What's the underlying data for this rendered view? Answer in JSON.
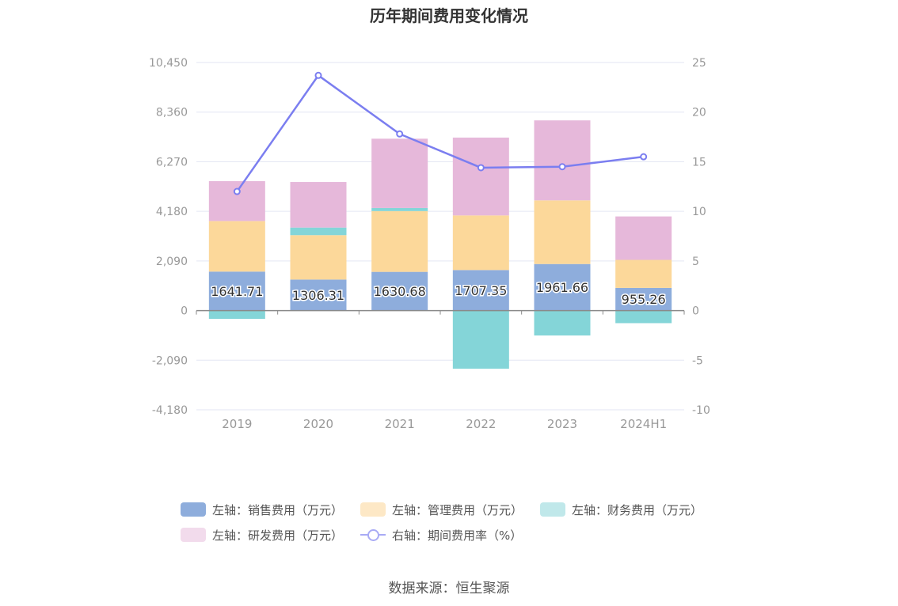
{
  "title": "历年期间费用变化情况",
  "source": "数据来源：恒生聚源",
  "colors": {
    "sales": "#8eaddc",
    "admin": "#fcd89a",
    "finance": "#84d5d8",
    "rd": "#e6b8da",
    "rate": "#7b7ef0",
    "legend_sales": "#8eaddc",
    "legend_admin": "#fde8c6",
    "legend_finance": "#c0e8ea",
    "legend_rd": "#f2dbec",
    "legend_rate": "#a9abf5",
    "axis_text": "#999999",
    "grid": "#e3e6f3"
  },
  "chart_data": {
    "type": "bar",
    "stacked": true,
    "categories": [
      "2019",
      "2020",
      "2021",
      "2022",
      "2023",
      "2024H1"
    ],
    "left_axis": {
      "range": [
        -4180,
        10450
      ],
      "ticks": [
        "10,450",
        "8,360",
        "6,270",
        "4,180",
        "2,090",
        "0",
        "-2,090",
        "-4,180"
      ]
    },
    "right_axis": {
      "range": [
        -10,
        25
      ],
      "ticks": [
        "25",
        "20",
        "15",
        "10",
        "5",
        "0",
        "-5",
        "-10"
      ]
    },
    "series": [
      {
        "name": "左轴：销售费用（万元）",
        "key": "sales",
        "axis": "left",
        "values": [
          1641.71,
          1306.31,
          1630.68,
          1707.35,
          1961.66,
          955.26
        ],
        "labels": [
          "1641.71",
          "1306.31",
          "1630.68",
          "1707.35",
          "1961.66",
          "955.26"
        ]
      },
      {
        "name": "左轴：管理费用（万元）",
        "key": "admin",
        "axis": "left",
        "values": [
          2130,
          1870,
          2560,
          2300,
          2680,
          1180
        ]
      },
      {
        "name": "左轴：财务费用（万元）",
        "key": "finance",
        "axis": "left",
        "values": [
          -350,
          320,
          130,
          -2450,
          -1050,
          -530
        ]
      },
      {
        "name": "左轴：研发费用（万元）",
        "key": "rd",
        "axis": "left",
        "values": [
          1680,
          1920,
          2920,
          3280,
          3370,
          1830
        ]
      },
      {
        "name": "右轴：期间费用率（%）",
        "key": "rate",
        "axis": "right",
        "type": "line",
        "values": [
          12.0,
          23.7,
          17.8,
          14.4,
          14.5,
          15.5
        ]
      }
    ],
    "legend_position": "bottom",
    "grid": true
  }
}
